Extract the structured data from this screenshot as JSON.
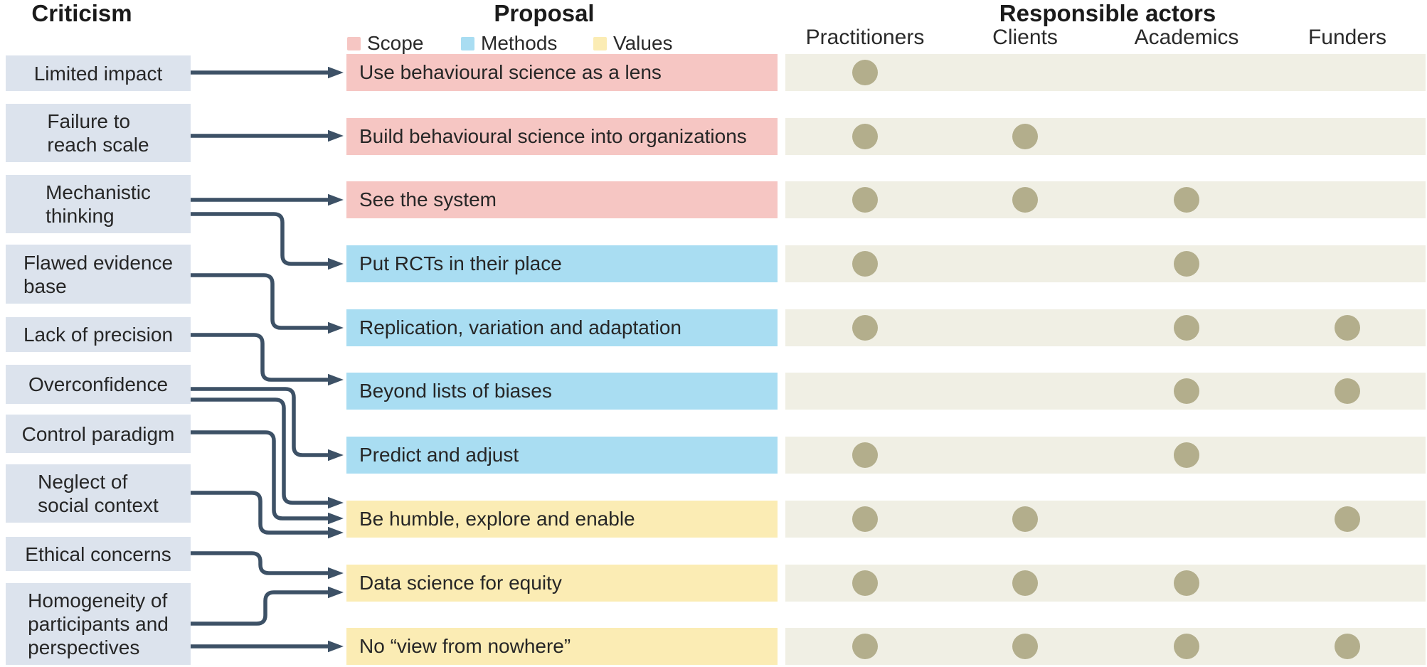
{
  "header": {
    "criticism_title": "Criticism",
    "proposal_title": "Proposal",
    "actors_title": "Responsible actors"
  },
  "legend": [
    {
      "label": "Scope",
      "category": "scope"
    },
    {
      "label": "Methods",
      "category": "methods"
    },
    {
      "label": "Values",
      "category": "values"
    }
  ],
  "colors": {
    "scope": "#f6c6c3",
    "methods": "#a9ddf2",
    "values": "#fbecb4",
    "criticism_box": "#dce3ed",
    "actor_band": "#f0efe4",
    "dot": "#b3ae8c",
    "arrow": "#3d5166"
  },
  "actor_columns": [
    "Practitioners",
    "Clients",
    "Academics",
    "Funders"
  ],
  "criticisms": [
    {
      "label": "Limited impact"
    },
    {
      "label": "Failure to\nreach scale"
    },
    {
      "label": "Mechanistic\nthinking"
    },
    {
      "label": "Flawed evidence\nbase"
    },
    {
      "label": "Lack of precision"
    },
    {
      "label": "Overconfidence"
    },
    {
      "label": "Control paradigm"
    },
    {
      "label": "Neglect of\nsocial context"
    },
    {
      "label": "Ethical concerns"
    },
    {
      "label": "Homogeneity of\nparticipants and\nperspectives"
    }
  ],
  "proposals": [
    {
      "label": "Use behavioural science as a lens",
      "category": "scope",
      "actors": [
        1,
        0,
        0,
        0
      ]
    },
    {
      "label": "Build behavioural science into organizations",
      "category": "scope",
      "actors": [
        1,
        1,
        0,
        0
      ]
    },
    {
      "label": "See the system",
      "category": "scope",
      "actors": [
        1,
        1,
        1,
        0
      ]
    },
    {
      "label": "Put RCTs in their place",
      "category": "methods",
      "actors": [
        1,
        0,
        1,
        0
      ]
    },
    {
      "label": "Replication, variation and adaptation",
      "category": "methods",
      "actors": [
        1,
        0,
        1,
        1
      ]
    },
    {
      "label": "Beyond lists of biases",
      "category": "methods",
      "actors": [
        0,
        0,
        1,
        1
      ]
    },
    {
      "label": "Predict and adjust",
      "category": "methods",
      "actors": [
        1,
        0,
        1,
        0
      ]
    },
    {
      "label": "Be humble, explore and enable",
      "category": "values",
      "actors": [
        1,
        1,
        0,
        1
      ]
    },
    {
      "label": "Data science for equity",
      "category": "values",
      "actors": [
        1,
        1,
        1,
        0
      ]
    },
    {
      "label": "No “view from nowhere”",
      "category": "values",
      "actors": [
        1,
        1,
        1,
        1
      ]
    }
  ],
  "links": [
    {
      "criticism": 0,
      "proposal": 0
    },
    {
      "criticism": 1,
      "proposal": 1
    },
    {
      "criticism": 2,
      "proposal": 2
    },
    {
      "criticism": 2,
      "proposal": 3
    },
    {
      "criticism": 3,
      "proposal": 4
    },
    {
      "criticism": 4,
      "proposal": 5
    },
    {
      "criticism": 5,
      "proposal": 6
    },
    {
      "criticism": 5,
      "proposal": 7
    },
    {
      "criticism": 6,
      "proposal": 7
    },
    {
      "criticism": 7,
      "proposal": 7
    },
    {
      "criticism": 8,
      "proposal": 8
    },
    {
      "criticism": 9,
      "proposal": 8
    },
    {
      "criticism": 9,
      "proposal": 9
    }
  ]
}
